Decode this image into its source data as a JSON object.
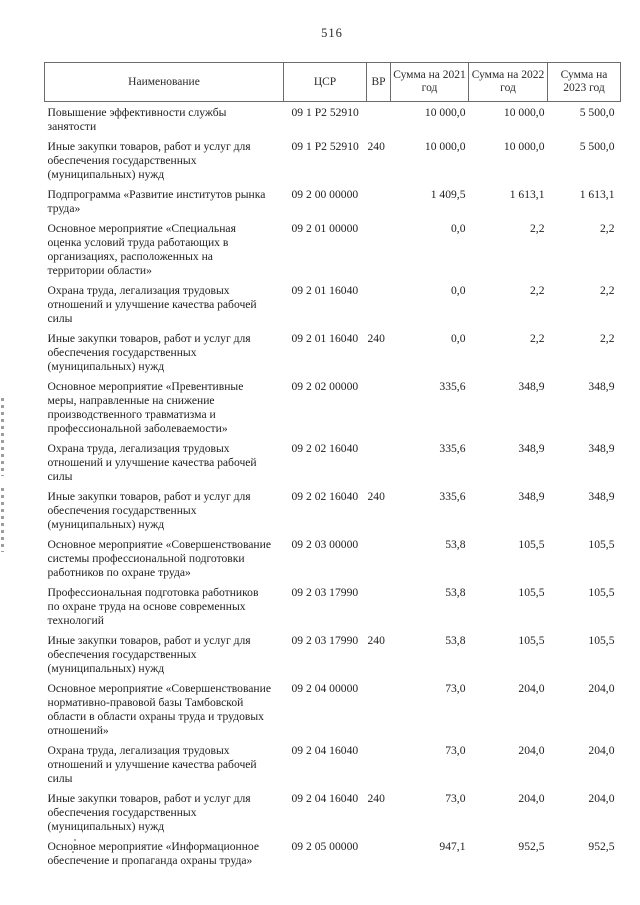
{
  "page": {
    "number": "516"
  },
  "table": {
    "headers": [
      "Наименование",
      "ЦСР",
      "ВР",
      "Сумма на 2021 год",
      "Сумма на 2022 год",
      "Сумма на 2023 год"
    ],
    "rows": [
      {
        "name": "Повышение эффективности службы занятости",
        "csr": "09 1 P2 52910",
        "vr": "",
        "y2021": "10 000,0",
        "y2022": "10 000,0",
        "y2023": "5 500,0"
      },
      {
        "name": "Иные закупки товаров, работ и услуг для обеспечения государственных (муниципальных) нужд",
        "csr": "09 1 P2 52910",
        "vr": "240",
        "y2021": "10 000,0",
        "y2022": "10 000,0",
        "y2023": "5 500,0"
      },
      {
        "name": "Подпрограмма «Развитие институтов рынка труда»",
        "csr": "09 2 00 00000",
        "vr": "",
        "y2021": "1 409,5",
        "y2022": "1 613,1",
        "y2023": "1 613,1"
      },
      {
        "name": "Основное мероприятие «Специальная оценка условий труда работающих в организациях, расположенных на территории области»",
        "csr": "09 2 01 00000",
        "vr": "",
        "y2021": "0,0",
        "y2022": "2,2",
        "y2023": "2,2"
      },
      {
        "name": "Охрана труда, легализация трудовых отношений и улучшение качества рабочей силы",
        "csr": "09 2 01 16040",
        "vr": "",
        "y2021": "0,0",
        "y2022": "2,2",
        "y2023": "2,2"
      },
      {
        "name": "Иные закупки товаров, работ и услуг для обеспечения государственных (муниципальных) нужд",
        "csr": "09 2 01 16040",
        "vr": "240",
        "y2021": "0,0",
        "y2022": "2,2",
        "y2023": "2,2"
      },
      {
        "name": "Основное мероприятие «Превентивные меры, направленные на снижение производственного травматизма и профессиональной заболеваемости»",
        "csr": "09 2 02 00000",
        "vr": "",
        "y2021": "335,6",
        "y2022": "348,9",
        "y2023": "348,9"
      },
      {
        "name": "Охрана труда, легализация трудовых отношений и улучшение качества рабочей силы",
        "csr": "09 2 02 16040",
        "vr": "",
        "y2021": "335,6",
        "y2022": "348,9",
        "y2023": "348,9"
      },
      {
        "name": "Иные закупки товаров, работ и услуг для обеспечения государственных (муниципальных) нужд",
        "csr": "09 2 02 16040",
        "vr": "240",
        "y2021": "335,6",
        "y2022": "348,9",
        "y2023": "348,9"
      },
      {
        "name": "Основное мероприятие «Совершенствование системы профессиональной подготовки работников по охране труда»",
        "csr": "09 2 03 00000",
        "vr": "",
        "y2021": "53,8",
        "y2022": "105,5",
        "y2023": "105,5"
      },
      {
        "name": "Профессиональная подготовка работников по охране труда на основе современных технологий",
        "csr": "09 2 03 17990",
        "vr": "",
        "y2021": "53,8",
        "y2022": "105,5",
        "y2023": "105,5"
      },
      {
        "name": "Иные закупки товаров, работ и услуг для обеспечения государственных (муниципальных) нужд",
        "csr": "09 2 03 17990",
        "vr": "240",
        "y2021": "53,8",
        "y2022": "105,5",
        "y2023": "105,5"
      },
      {
        "name": "Основное мероприятие «Совершенствование нормативно-правовой базы Тамбовской области в области охраны труда и трудовых отношений»",
        "csr": "09 2 04 00000",
        "vr": "",
        "y2021": "73,0",
        "y2022": "204,0",
        "y2023": "204,0"
      },
      {
        "name": "Охрана труда, легализация трудовых отношений и улучшение качества рабочей силы",
        "csr": "09 2 04 16040",
        "vr": "",
        "y2021": "73,0",
        "y2022": "204,0",
        "y2023": "204,0"
      },
      {
        "name": "Иные закупки товаров, работ и услуг для обеспечения государственных (муниципальных) нужд",
        "csr": "09 2 04 16040",
        "vr": "240",
        "y2021": "73,0",
        "y2022": "204,0",
        "y2023": "204,0"
      },
      {
        "name": "Основное мероприятие «Информационное обеспечение и пропаганда охраны труда»",
        "csr": "09 2 05 00000",
        "vr": "",
        "y2021": "947,1",
        "y2022": "952,5",
        "y2023": "952,5"
      }
    ]
  }
}
